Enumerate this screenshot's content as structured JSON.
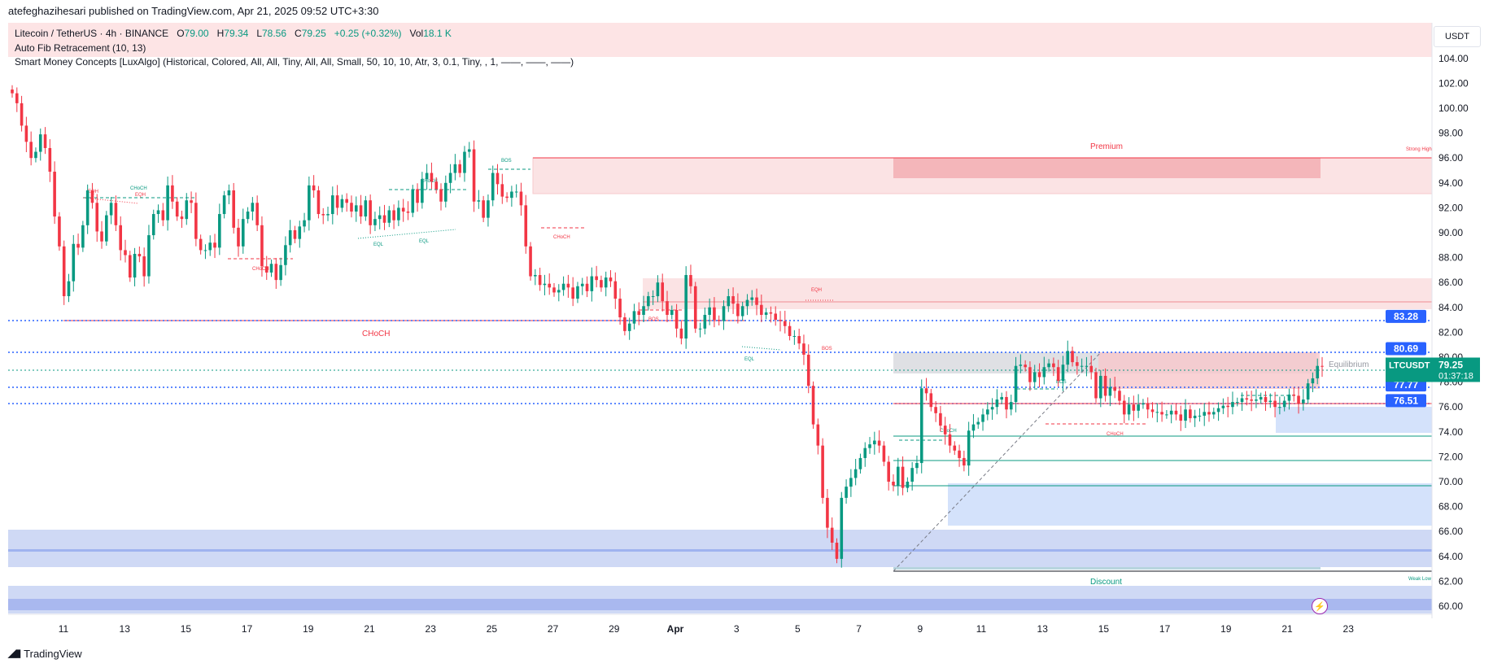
{
  "header": {
    "published": "atefeghazihesari published on TradingView.com, Apr 21, 2025 09:52 UTC+3:30"
  },
  "legend": {
    "symbol": "Litecoin / TetherUS · 4h · BINANCE",
    "o_label": "O",
    "o": "79.00",
    "h_label": "H",
    "h": "79.34",
    "l_label": "L",
    "l": "78.56",
    "c_label": "C",
    "c": "79.25",
    "change": "+0.25 (+0.32%)",
    "vol_label": "Vol",
    "vol": "18.1 K",
    "indicator1": "Auto Fib Retracement (10, 13)",
    "indicator2": "Smart Money Concepts [LuxAlgo] (Historical, Colored, All, All, Tiny, All, All, Small, 50, 10, 10, Atr, 3, 0.1, Tiny, , 1, ——, ——, ——)"
  },
  "currency": "USDT",
  "footer": {
    "brand": "TradingView"
  },
  "colors": {
    "up": "#089981",
    "down": "#f23645",
    "blue": "#2962ff",
    "premium_zone": "#f8bbbf",
    "discount_zone": "#9fb3ef"
  },
  "chart_data": {
    "type": "candlestick",
    "title": "Litecoin / TetherUS · 4h · BINANCE",
    "ylim": [
      59,
      105
    ],
    "y_ticks": [
      "60.00",
      "62.00",
      "64.00",
      "66.00",
      "68.00",
      "70.00",
      "72.00",
      "74.00",
      "76.00",
      "78.00",
      "80.00",
      "82.00",
      "84.00",
      "86.00",
      "88.00",
      "90.00",
      "92.00",
      "94.00",
      "96.00",
      "98.00",
      "100.00",
      "102.00",
      "104.00"
    ],
    "x_ticks": [
      "11",
      "13",
      "15",
      "17",
      "19",
      "21",
      "23",
      "25",
      "27",
      "29",
      "Apr",
      "3",
      "5",
      "7",
      "9",
      "11",
      "13",
      "15",
      "17",
      "19",
      "21",
      "23"
    ],
    "closes": [
      101.2,
      100.4,
      98.6,
      97.3,
      96.0,
      96.5,
      97.9,
      96.8,
      94.9,
      91.3,
      88.9,
      84.9,
      86.1,
      89.1,
      88.8,
      90.6,
      93.4,
      92.4,
      90.1,
      89.3,
      91.4,
      92.4,
      90.6,
      88.6,
      88.2,
      86.4,
      88.3,
      88.1,
      86.5,
      89.8,
      91.5,
      91.8,
      91.0,
      93.8,
      92.5,
      91.3,
      91.1,
      92.6,
      92.4,
      89.5,
      88.6,
      88.6,
      89.2,
      88.8,
      91.5,
      93.0,
      93.4,
      90.4,
      88.9,
      91.1,
      91.7,
      92.4,
      90.6,
      87.3,
      86.8,
      87.5,
      86.2,
      87.4,
      89.0,
      90.2,
      89.5,
      90.5,
      91.0,
      93.8,
      93.4,
      91.5,
      91.4,
      91.5,
      93.0,
      92.0,
      92.7,
      92.4,
      91.7,
      92.2,
      91.3,
      92.6,
      90.6,
      91.1,
      91.4,
      90.8,
      91.8,
      91.0,
      92.0,
      91.7,
      91.6,
      93.5,
      92.4,
      94.3,
      94.8,
      94.1,
      93.5,
      92.5,
      94.0,
      94.8,
      95.5,
      94.8,
      96.5,
      96.7,
      92.5,
      92.6,
      91.2,
      92.6,
      94.8,
      93.9,
      92.9,
      92.8,
      93.3,
      93.3,
      92.2,
      88.9,
      86.5,
      86.6,
      85.8,
      85.9,
      85.6,
      85.2,
      85.4,
      85.9,
      85.6,
      84.7,
      85.7,
      85.9,
      85.3,
      86.5,
      86.2,
      85.6,
      86.4,
      86.1,
      84.7,
      83.2,
      82.1,
      82.7,
      83.7,
      83.4,
      84.1,
      84.9,
      84.9,
      86.0,
      84.5,
      83.4,
      83.8,
      82.3,
      81.5,
      86.6,
      85.7,
      82.3,
      82.3,
      83.4,
      84.0,
      83.0,
      82.9,
      84.1,
      84.9,
      84.3,
      83.3,
      84.1,
      84.6,
      84.8,
      84.2,
      83.4,
      83.6,
      83.5,
      83.0,
      82.9,
      82.5,
      81.7,
      81.7,
      81.1,
      80.2,
      77.7,
      74.6,
      72.9,
      68.7,
      66.3,
      65.1,
      63.8,
      68.7,
      69.6,
      70.3,
      71.0,
      71.9,
      72.7,
      73.0,
      73.3,
      72.9,
      71.6,
      70.0,
      69.7,
      71.2,
      69.5,
      70.0,
      71.1,
      71.5,
      77.5,
      77.1,
      76.0,
      75.5,
      74.5,
      73.8,
      72.9,
      72.5,
      71.9,
      71.3,
      74.1,
      74.6,
      74.8,
      75.4,
      75.8,
      76.0,
      76.6,
      76.8,
      75.8,
      76.4,
      79.3,
      79.4,
      79.2,
      78.0,
      78.8,
      78.4,
      79.2,
      79.5,
      79.2,
      78.1,
      79.4,
      80.5,
      79.6,
      79.3,
      79.3,
      79.3,
      78.8,
      76.7,
      78.5,
      76.9,
      77.6,
      77.3,
      76.5,
      75.4,
      76.2,
      75.7,
      76.2,
      76.3,
      75.8,
      75.6,
      75.6,
      75.4,
      75.4,
      75.7,
      75.4,
      74.9,
      75.8,
      75.1,
      75.3,
      75.3,
      75.6,
      75.4,
      75.6,
      75.9,
      76.1,
      76.0,
      76.4,
      76.4,
      76.7,
      76.6,
      76.5,
      76.6,
      76.8,
      76.4,
      76.5,
      76.0,
      76.0,
      76.5,
      77.0,
      76.9,
      76.3,
      76.6,
      77.9,
      78.3,
      79.3,
      79.25
    ],
    "price_labels": [
      {
        "value": 83.28,
        "text": "83.28"
      },
      {
        "value": 80.69,
        "text": "80.69"
      },
      {
        "value": 77.77,
        "text": "77.77"
      },
      {
        "value": 76.51,
        "text": "76.51"
      }
    ],
    "current_price": {
      "symbol": "LTCUSDT",
      "price": "79.25",
      "countdown": "01:37:18"
    },
    "annotations": [
      "Premium",
      "Equilibrium",
      "Discount",
      "Strong High",
      "Weak Low",
      "CHoCH",
      "CHoCH",
      "CHoCH",
      "CHoCH",
      "CHoCH",
      "CHoCH",
      "CHoCH",
      "BOS",
      "BOS",
      "BOS",
      "BOS",
      "EQH",
      "EQH",
      "EQH",
      "EQL",
      "EQL",
      "EQL"
    ]
  }
}
